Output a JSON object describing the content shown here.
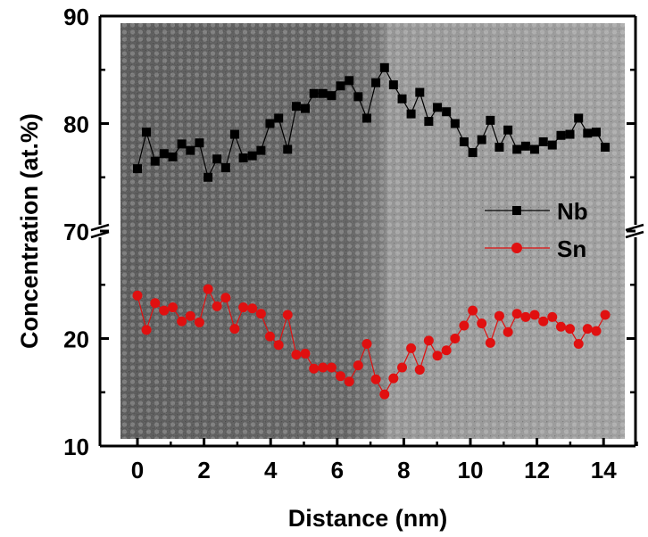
{
  "chart_data": {
    "type": "scatter",
    "title": "",
    "xlabel": "Distance (nm)",
    "ylabel": "Concentration (at.%)",
    "xlim": [
      -0.5,
      15
    ],
    "ylim_upper_panel": [
      70,
      90
    ],
    "ylim_lower_panel": [
      10,
      30
    ],
    "axis_break": true,
    "x_ticks": [
      "0",
      "2",
      "4",
      "6",
      "8",
      "10",
      "12",
      "14"
    ],
    "y_ticks": [
      "90",
      "80",
      "70",
      "20",
      "10"
    ],
    "background": "TEM lattice micrograph (darker on the left, brighter on the right)",
    "legend_position": "right",
    "series": [
      {
        "name": "Nb",
        "color": "#000000",
        "marker": "square",
        "x": [
          0.0,
          0.27,
          0.53,
          0.8,
          1.06,
          1.33,
          1.59,
          1.86,
          2.12,
          2.39,
          2.65,
          2.92,
          3.18,
          3.45,
          3.71,
          3.98,
          4.24,
          4.51,
          4.77,
          5.04,
          5.3,
          5.57,
          5.83,
          6.1,
          6.36,
          6.63,
          6.89,
          7.16,
          7.42,
          7.69,
          7.95,
          8.22,
          8.48,
          8.75,
          9.01,
          9.28,
          9.54,
          9.81,
          10.07,
          10.34,
          10.6,
          10.87,
          11.13,
          11.4,
          11.66,
          11.93,
          12.19,
          12.46,
          12.72,
          12.99,
          13.25,
          13.52,
          13.78,
          14.05
        ],
        "y": [
          75.8,
          79.2,
          76.5,
          77.2,
          76.9,
          78.1,
          77.5,
          78.2,
          75.0,
          76.7,
          75.9,
          79.0,
          76.8,
          77.0,
          77.5,
          80.0,
          80.5,
          77.6,
          81.6,
          81.4,
          82.8,
          82.8,
          82.6,
          83.5,
          84.0,
          82.5,
          80.5,
          83.8,
          85.2,
          83.6,
          82.3,
          80.9,
          82.9,
          80.2,
          81.5,
          81.1,
          80.0,
          78.3,
          77.3,
          78.5,
          80.3,
          77.8,
          79.4,
          77.6,
          77.9,
          77.6,
          78.3,
          78.0,
          78.9,
          79.0,
          80.5,
          79.1,
          79.2,
          77.8
        ]
      },
      {
        "name": "Sn",
        "color": "#e01010",
        "marker": "circle",
        "x": [
          0.0,
          0.27,
          0.53,
          0.8,
          1.06,
          1.33,
          1.59,
          1.86,
          2.12,
          2.39,
          2.65,
          2.92,
          3.18,
          3.45,
          3.71,
          3.98,
          4.24,
          4.51,
          4.77,
          5.04,
          5.3,
          5.57,
          5.83,
          6.1,
          6.36,
          6.63,
          6.89,
          7.16,
          7.42,
          7.69,
          7.95,
          8.22,
          8.48,
          8.75,
          9.01,
          9.28,
          9.54,
          9.81,
          10.07,
          10.34,
          10.6,
          10.87,
          11.13,
          11.4,
          11.66,
          11.93,
          12.19,
          12.46,
          12.72,
          12.99,
          13.25,
          13.52,
          13.78,
          14.05
        ],
        "y": [
          24.0,
          20.8,
          23.3,
          22.6,
          22.9,
          21.6,
          22.1,
          21.5,
          24.6,
          23.0,
          23.8,
          20.9,
          22.9,
          22.8,
          22.3,
          20.2,
          19.4,
          22.2,
          18.5,
          18.6,
          17.2,
          17.3,
          17.3,
          16.5,
          16.0,
          17.5,
          19.5,
          16.2,
          14.8,
          16.3,
          17.3,
          19.1,
          17.1,
          19.8,
          18.4,
          18.9,
          20.0,
          21.2,
          22.6,
          21.4,
          19.6,
          22.1,
          20.6,
          22.3,
          22.0,
          22.2,
          21.6,
          22.0,
          21.1,
          20.9,
          19.5,
          20.9,
          20.7,
          22.2
        ]
      }
    ]
  }
}
